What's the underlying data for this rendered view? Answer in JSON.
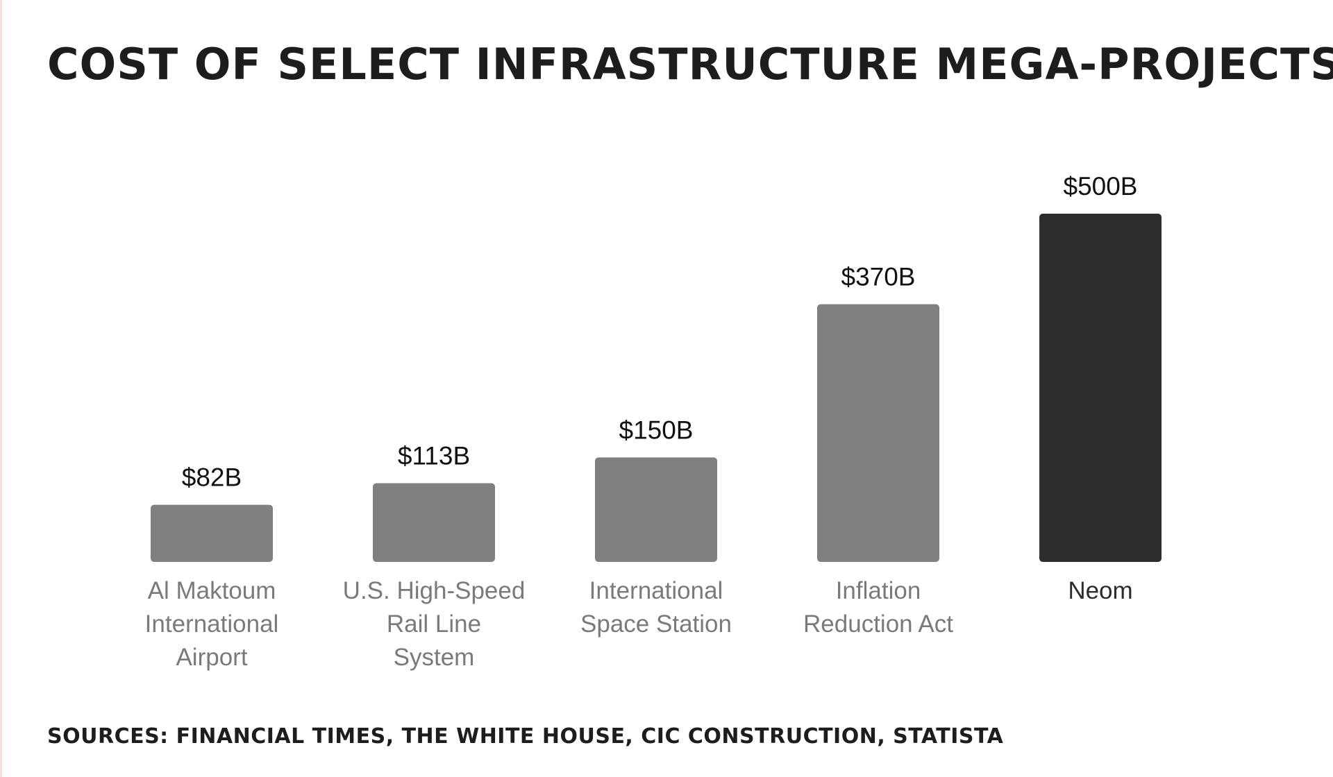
{
  "chart_data": {
    "type": "bar",
    "title": "COST OF SELECT INFRASTRUCTURE MEGA-PROJECTS",
    "xlabel": "",
    "ylabel": "",
    "ylim": [
      0,
      500
    ],
    "grid": false,
    "categories": [
      [
        "Al Maktoum",
        "International",
        "Airport"
      ],
      [
        "U.S. High-Speed",
        "Rail Line",
        "System"
      ],
      [
        "International",
        "Space Station"
      ],
      [
        "Inflation",
        "Reduction Act"
      ],
      [
        "Neom"
      ]
    ],
    "values": [
      82,
      113,
      150,
      370,
      500
    ],
    "value_labels": [
      "$82B",
      "$113B",
      "$150B",
      "$370B",
      "$500B"
    ],
    "highlight_index": 4,
    "colors": {
      "bar": "#808080",
      "highlight_bar": "#2d2d2d",
      "value_label": "#111111",
      "category_label": "#7a7a7a",
      "highlight_label": "#2b2b2b"
    }
  },
  "footer": {
    "sources": "SOURCES: FINANCIAL TIMES, THE WHITE HOUSE, CIC CONSTRUCTION, STATISTA"
  }
}
